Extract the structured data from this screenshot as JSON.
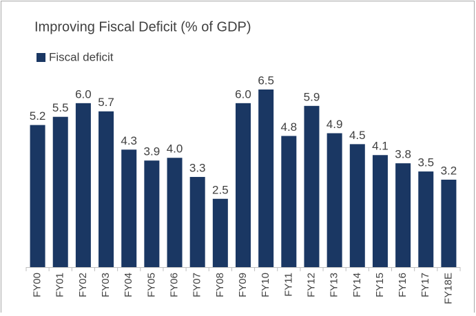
{
  "chart_data": {
    "type": "bar",
    "title": "Improving Fiscal Deficit (% of GDP)",
    "categories": [
      "FY00",
      "FY01",
      "FY02",
      "FY03",
      "FY04",
      "FY05",
      "FY06",
      "FY07",
      "FY08",
      "FY09",
      "FY10",
      "FY11",
      "FY12",
      "FY13",
      "FY14",
      "FY15",
      "FY16",
      "FY17",
      "FY18E"
    ],
    "series": [
      {
        "name": "Fiscal deficit",
        "color": "#1a3763",
        "values": [
          5.2,
          5.5,
          6.0,
          5.7,
          4.3,
          3.9,
          4.0,
          3.3,
          2.5,
          6.0,
          6.5,
          4.8,
          5.9,
          4.9,
          4.5,
          4.1,
          3.8,
          3.5,
          3.2
        ],
        "value_labels": [
          "5.2",
          "5.5",
          "6.0",
          "5.7",
          "4.3",
          "3.9",
          "4.0",
          "3.3",
          "2.5",
          "6.0",
          "6.5",
          "4.8",
          "5.9",
          "4.9",
          "4.5",
          "4.1",
          "3.8",
          "3.5",
          "3.2"
        ]
      }
    ]
  }
}
